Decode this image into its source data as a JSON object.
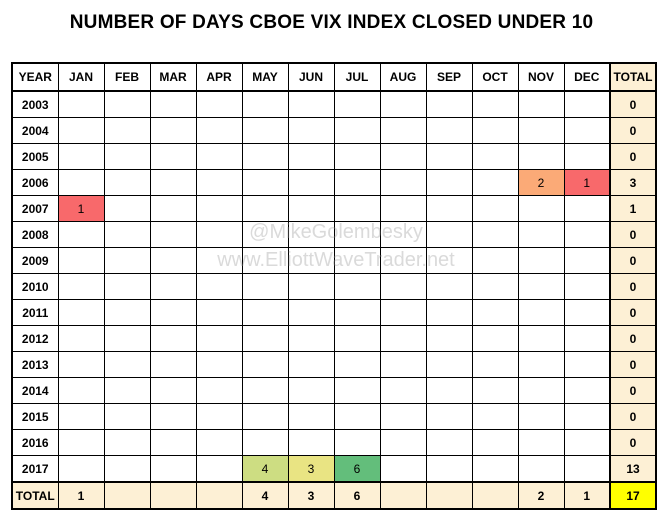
{
  "title": "NUMBER OF DAYS CBOE VIX INDEX CLOSED UNDER 10",
  "headers": [
    "YEAR",
    "JAN",
    "FEB",
    "MAR",
    "APR",
    "MAY",
    "JUN",
    "JUL",
    "AUG",
    "SEP",
    "OCT",
    "NOV",
    "DEC",
    "TOTAL"
  ],
  "rows": [
    {
      "year": "2003",
      "cells": [
        "",
        "",
        "",
        "",
        "",
        "",
        "",
        "",
        "",
        "",
        "",
        ""
      ],
      "total": "0"
    },
    {
      "year": "2004",
      "cells": [
        "",
        "",
        "",
        "",
        "",
        "",
        "",
        "",
        "",
        "",
        "",
        ""
      ],
      "total": "0"
    },
    {
      "year": "2005",
      "cells": [
        "",
        "",
        "",
        "",
        "",
        "",
        "",
        "",
        "",
        "",
        "",
        ""
      ],
      "total": "0"
    },
    {
      "year": "2006",
      "cells": [
        "",
        "",
        "",
        "",
        "",
        "",
        "",
        "",
        "",
        "",
        "2",
        "1"
      ],
      "total": "3"
    },
    {
      "year": "2007",
      "cells": [
        "1",
        "",
        "",
        "",
        "",
        "",
        "",
        "",
        "",
        "",
        "",
        ""
      ],
      "total": "1"
    },
    {
      "year": "2008",
      "cells": [
        "",
        "",
        "",
        "",
        "",
        "",
        "",
        "",
        "",
        "",
        "",
        ""
      ],
      "total": "0"
    },
    {
      "year": "2009",
      "cells": [
        "",
        "",
        "",
        "",
        "",
        "",
        "",
        "",
        "",
        "",
        "",
        ""
      ],
      "total": "0"
    },
    {
      "year": "2010",
      "cells": [
        "",
        "",
        "",
        "",
        "",
        "",
        "",
        "",
        "",
        "",
        "",
        ""
      ],
      "total": "0"
    },
    {
      "year": "2011",
      "cells": [
        "",
        "",
        "",
        "",
        "",
        "",
        "",
        "",
        "",
        "",
        "",
        ""
      ],
      "total": "0"
    },
    {
      "year": "2012",
      "cells": [
        "",
        "",
        "",
        "",
        "",
        "",
        "",
        "",
        "",
        "",
        "",
        ""
      ],
      "total": "0"
    },
    {
      "year": "2013",
      "cells": [
        "",
        "",
        "",
        "",
        "",
        "",
        "",
        "",
        "",
        "",
        "",
        ""
      ],
      "total": "0"
    },
    {
      "year": "2014",
      "cells": [
        "",
        "",
        "",
        "",
        "",
        "",
        "",
        "",
        "",
        "",
        "",
        ""
      ],
      "total": "0"
    },
    {
      "year": "2015",
      "cells": [
        "",
        "",
        "",
        "",
        "",
        "",
        "",
        "",
        "",
        "",
        "",
        ""
      ],
      "total": "0"
    },
    {
      "year": "2016",
      "cells": [
        "",
        "",
        "",
        "",
        "",
        "",
        "",
        "",
        "",
        "",
        "",
        ""
      ],
      "total": "0"
    },
    {
      "year": "2017",
      "cells": [
        "",
        "",
        "",
        "",
        "4",
        "3",
        "6",
        "",
        "",
        "",
        "",
        ""
      ],
      "total": "13"
    }
  ],
  "totals_row": {
    "label": "TOTAL",
    "cells": [
      "1",
      "",
      "",
      "",
      "4",
      "3",
      "6",
      "",
      "",
      "",
      "2",
      "1"
    ],
    "total": "17"
  },
  "heat_colors": {
    "1": "#f8696b",
    "2": "#fbaa77",
    "3": "#e9e483",
    "4": "#cddd82",
    "6": "#63be7b"
  },
  "watermark": {
    "line1": "@MikeGolembesky",
    "line2": "www.ElliottWaveTrader.net"
  }
}
